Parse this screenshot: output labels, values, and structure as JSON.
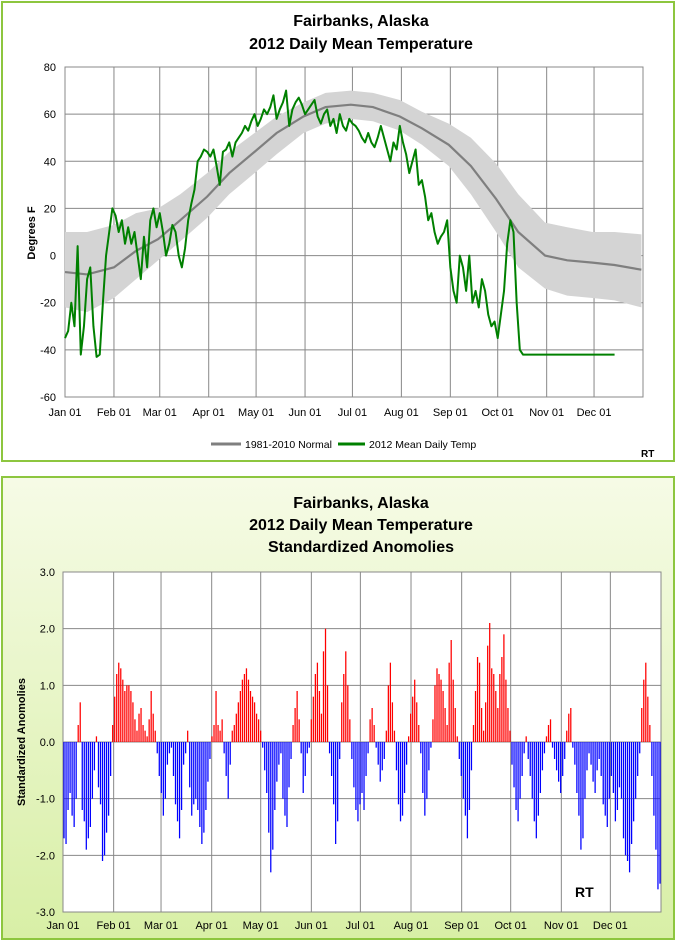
{
  "chart_data": [
    {
      "type": "line",
      "title": "Fairbanks, Alaska",
      "subtitle": "2012 Daily Mean Temperature",
      "xlabel": "",
      "ylabel": "Degrees F",
      "ylim": [
        -60,
        80
      ],
      "y_ticks": [
        "80",
        "60",
        "40",
        "20",
        "0",
        "-20",
        "-40",
        "-60"
      ],
      "x_ticks": [
        "Jan 01",
        "Feb 01",
        "Mar 01",
        "Apr 01",
        "May 01",
        "Jun 01",
        "Jul 01",
        "Aug 01",
        "Sep 01",
        "Oct 01",
        "Nov 01",
        "Dec 01"
      ],
      "grid": true,
      "legend": "bottom",
      "credit": "RT",
      "series": [
        {
          "name": "1981-2010 Normal",
          "color": "#7f7f7f",
          "day": [
            1,
            15,
            32,
            46,
            60,
            74,
            91,
            105,
            121,
            135,
            152,
            166,
            182,
            196,
            213,
            227,
            244,
            258,
            274,
            288,
            305,
            319,
            335,
            349,
            366
          ],
          "values": [
            -7,
            -8,
            -5,
            2,
            7,
            15,
            25,
            35,
            44,
            52,
            59,
            63,
            64,
            63,
            59,
            54,
            47,
            38,
            24,
            10,
            0,
            -2,
            -3,
            -4,
            -6
          ],
          "band_low": [
            -22,
            -24,
            -18,
            -10,
            -2,
            6,
            16,
            26,
            35,
            43,
            52,
            56,
            58,
            57,
            53,
            47,
            38,
            26,
            10,
            -5,
            -14,
            -17,
            -18,
            -19,
            -22
          ],
          "band_high": [
            10,
            10,
            13,
            18,
            20,
            26,
            35,
            44,
            52,
            59,
            65,
            69,
            70,
            69,
            66,
            61,
            56,
            50,
            39,
            26,
            14,
            12,
            10,
            10,
            9
          ]
        },
        {
          "name": "2012 Mean Daily Temp",
          "color": "#008000",
          "day": [
            1,
            3,
            5,
            7,
            9,
            11,
            13,
            15,
            17,
            19,
            21,
            23,
            25,
            27,
            29,
            31,
            33,
            35,
            37,
            39,
            41,
            43,
            45,
            47,
            49,
            51,
            53,
            55,
            57,
            59,
            61,
            63,
            65,
            67,
            69,
            71,
            73,
            75,
            77,
            79,
            81,
            83,
            85,
            87,
            89,
            91,
            93,
            95,
            97,
            99,
            101,
            103,
            105,
            107,
            109,
            111,
            113,
            115,
            117,
            119,
            121,
            123,
            125,
            127,
            129,
            131,
            133,
            135,
            137,
            139,
            141,
            143,
            145,
            147,
            149,
            151,
            153,
            155,
            157,
            159,
            161,
            163,
            165,
            167,
            169,
            171,
            173,
            175,
            177,
            179,
            181,
            183,
            185,
            187,
            189,
            191,
            193,
            195,
            197,
            199,
            201,
            203,
            205,
            207,
            209,
            211,
            213,
            215,
            217,
            219,
            221,
            223,
            225,
            227,
            229,
            231,
            233,
            235,
            237,
            239,
            241,
            243,
            245,
            247,
            249,
            251,
            253,
            255,
            257,
            259,
            261,
            263,
            265,
            267,
            269,
            271,
            273,
            275,
            277,
            279,
            281,
            283,
            285,
            287,
            289,
            291,
            293,
            295,
            297,
            299,
            301,
            303,
            305,
            307,
            309,
            311,
            313,
            315,
            317,
            319,
            321,
            323,
            325,
            327,
            329,
            331,
            333,
            335,
            337,
            339,
            341,
            343,
            345,
            347,
            349
          ],
          "values": [
            -35,
            -32,
            -20,
            -30,
            4,
            -42,
            -30,
            -10,
            -5,
            -30,
            -43,
            -42,
            -20,
            0,
            10,
            20,
            17,
            10,
            15,
            5,
            12,
            5,
            10,
            0,
            -10,
            8,
            -5,
            15,
            20,
            12,
            18,
            10,
            0,
            5,
            13,
            10,
            0,
            -5,
            3,
            15,
            22,
            28,
            40,
            42,
            45,
            44,
            42,
            45,
            38,
            30,
            44,
            45,
            48,
            42,
            48,
            50,
            52,
            55,
            53,
            57,
            60,
            55,
            58,
            62,
            60,
            63,
            68,
            58,
            62,
            65,
            70,
            55,
            62,
            65,
            67,
            64,
            60,
            62,
            64,
            66,
            59,
            56,
            60,
            62,
            55,
            58,
            52,
            60,
            55,
            53,
            58,
            56,
            55,
            53,
            50,
            48,
            52,
            48,
            46,
            50,
            55,
            50,
            45,
            40,
            48,
            45,
            55,
            48,
            43,
            35,
            40,
            45,
            30,
            32,
            25,
            15,
            18,
            10,
            5,
            8,
            10,
            15,
            -5,
            -15,
            -20,
            0,
            -5,
            -15,
            0,
            -20,
            -15,
            -22,
            -10,
            -15,
            -25,
            -30,
            -28,
            -35,
            -25,
            -15,
            5,
            15,
            10,
            -20,
            -40,
            -42,
            -42,
            -42,
            -42,
            -42,
            -42,
            -42,
            -42,
            -42,
            -42,
            -42,
            -42,
            -42,
            -42,
            -42,
            -42,
            -42,
            -42,
            -42,
            -42,
            -42,
            -42,
            -42,
            -42,
            -42,
            -42,
            -42,
            -42,
            -42,
            -42
          ]
        }
      ]
    },
    {
      "type": "bar",
      "title": "Fairbanks, Alaska",
      "subtitle": "2012 Daily Mean Temperature",
      "subtitle2": "Standardized Anomolies",
      "xlabel": "",
      "ylabel": "Standardized Anomolies",
      "ylim": [
        -3.0,
        3.0
      ],
      "y_ticks": [
        "3.0",
        "2.0",
        "1.0",
        "0.0",
        "-1.0",
        "-2.0",
        "-3.0"
      ],
      "x_ticks": [
        "Jan 01",
        "Feb 01",
        "Mar 01",
        "Apr 01",
        "May 01",
        "Jun 01",
        "Jul 01",
        "Aug 01",
        "Sep 01",
        "Oct 01",
        "Nov 01",
        "Dec 01"
      ],
      "grid": true,
      "credit": "RT",
      "positive_color": "#ff0000",
      "negative_color": "#0000ff",
      "values": [
        -1.7,
        -1.8,
        -1.2,
        -0.9,
        -1.3,
        -1.5,
        -1.0,
        0.3,
        0.7,
        -1.2,
        -1.4,
        -1.9,
        -1.7,
        -1.5,
        -1.0,
        -0.5,
        0.1,
        -0.8,
        -1.1,
        -2.1,
        -2.0,
        -1.6,
        -1.3,
        -0.6,
        0.3,
        0.8,
        1.2,
        1.4,
        1.3,
        1.1,
        0.9,
        1.0,
        1.0,
        0.9,
        0.7,
        0.4,
        0.2,
        0.5,
        0.6,
        0.3,
        0.2,
        0.1,
        0.4,
        0.9,
        0.5,
        0.2,
        -0.2,
        -0.6,
        -0.9,
        -1.3,
        -1.0,
        -0.4,
        -0.2,
        -0.1,
        -0.6,
        -1.1,
        -1.4,
        -1.7,
        -1.2,
        -0.4,
        -0.2,
        0.2,
        -0.8,
        -1.3,
        -1.1,
        -1.0,
        -1.2,
        -1.5,
        -1.8,
        -1.6,
        -1.2,
        -0.7,
        -0.3,
        0.1,
        0.3,
        0.9,
        0.3,
        0.2,
        0.4,
        -0.2,
        -0.6,
        -1.0,
        -0.4,
        0.2,
        0.3,
        0.5,
        0.7,
        0.9,
        1.1,
        1.2,
        1.3,
        1.1,
        0.9,
        0.8,
        0.7,
        0.5,
        0.4,
        0.2,
        -0.1,
        -0.5,
        -0.9,
        -1.6,
        -2.3,
        -1.9,
        -1.2,
        -0.7,
        -0.4,
        -0.2,
        -1.0,
        -1.3,
        -1.5,
        -0.8,
        -0.3,
        0.3,
        0.6,
        0.9,
        0.4,
        -0.2,
        -0.9,
        -0.6,
        -0.2,
        -0.1,
        0.4,
        0.8,
        1.2,
        1.4,
        0.9,
        0.5,
        1.6,
        2.0,
        1.0,
        -0.2,
        -0.6,
        -1.1,
        -1.8,
        -1.4,
        -0.3,
        0.7,
        1.2,
        1.6,
        1.0,
        0.4,
        -0.3,
        -0.8,
        -1.2,
        -1.4,
        -1.1,
        -0.9,
        -1.2,
        -0.6,
        -0.2,
        0.4,
        0.6,
        0.3,
        -0.1,
        -0.4,
        -0.7,
        -0.5,
        -0.3,
        0.2,
        1.0,
        1.4,
        0.7,
        0.2,
        -0.5,
        -1.1,
        -1.4,
        -1.3,
        -0.9,
        -0.4,
        0.1,
        0.5,
        0.8,
        1.1,
        0.7,
        0.3,
        -0.2,
        -0.9,
        -1.3,
        -1.0,
        -0.5,
        -0.1,
        0.4,
        1.0,
        1.3,
        1.2,
        1.1,
        0.9,
        0.6,
        0.3,
        1.4,
        1.8,
        1.1,
        0.6,
        0.1,
        -0.3,
        -0.6,
        -1.0,
        -1.3,
        -1.7,
        -1.2,
        -0.5,
        0.3,
        0.9,
        1.5,
        1.4,
        0.6,
        0.2,
        0.7,
        1.7,
        2.1,
        1.3,
        1.2,
        0.9,
        0.6,
        1.2,
        1.5,
        1.9,
        1.1,
        0.6,
        0.2,
        -0.4,
        -0.8,
        -1.2,
        -1.4,
        -1.0,
        -0.6,
        -0.2,
        0.1,
        -0.3,
        -0.6,
        -1.0,
        -1.4,
        -1.7,
        -1.3,
        -0.9,
        -0.5,
        -0.2,
        0.1,
        0.3,
        0.4,
        -0.1,
        -0.3,
        -0.5,
        -0.7,
        -0.9,
        -0.6,
        -0.3,
        0.2,
        0.5,
        0.6,
        -0.1,
        -0.4,
        -0.9,
        -1.3,
        -1.9,
        -1.7,
        -1.0,
        -0.5,
        -0.2,
        -0.4,
        -0.7,
        -0.9,
        -0.5,
        -0.3,
        -0.6,
        -1.1,
        -1.3,
        -1.5,
        -1.0,
        -0.6,
        -0.9,
        -1.4,
        -1.2,
        -0.8,
        -1.0,
        -1.7,
        -2.0,
        -2.1,
        -2.3,
        -1.8,
        -1.4,
        -1.0,
        -0.6,
        -0.2,
        0.6,
        1.1,
        1.4,
        0.8,
        0.3,
        -0.6,
        -1.3,
        -1.9,
        -2.6,
        -2.5
      ]
    }
  ]
}
